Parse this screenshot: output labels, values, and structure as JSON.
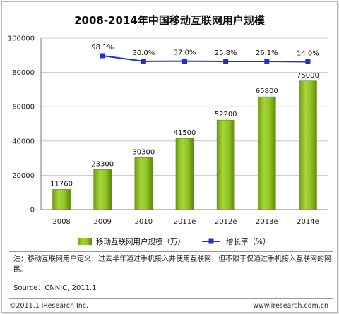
{
  "chart_data": {
    "type": "bar",
    "title": "2008-2014年中国移动互联网用户规模",
    "categories": [
      "2008",
      "2009",
      "2010",
      "2011e",
      "2012e",
      "2013e",
      "2014e"
    ],
    "series": [
      {
        "name": "移动互联网用户规模（万）",
        "type": "bar",
        "axis": "left",
        "values": [
          11760,
          23300,
          30300,
          41500,
          52200,
          65800,
          75000
        ]
      },
      {
        "name": "增长率（%）",
        "type": "line",
        "axis": "right",
        "values": [
          null,
          98.1,
          30.0,
          37.0,
          25.8,
          26.1,
          14.0
        ],
        "labels": [
          "",
          "98.1%",
          "30.0%",
          "37.0%",
          "25.8%",
          "26.1%",
          "14.0%"
        ]
      }
    ],
    "ylim": [
      0,
      100000
    ],
    "yticks": [
      "0",
      "20000",
      "40000",
      "60000",
      "80000",
      "100000"
    ],
    "grid": true,
    "legend": "bottom",
    "colors": {
      "bar": "#8fc31f",
      "bar_dark": "#5e8a0a",
      "line": "#1f2fd6",
      "title": "#0a0a0a"
    }
  },
  "notes": {
    "definition": "注：移动互联网用户定义：过去半年通过手机接入并使用互联网，但不限于仅通过手机接入互联网的网民。",
    "source": "Source：CNNIC, 2011.1"
  },
  "footer": {
    "copyright": "©2011.1 iResearch Inc.",
    "website": "www.iresearch.com.cn"
  }
}
